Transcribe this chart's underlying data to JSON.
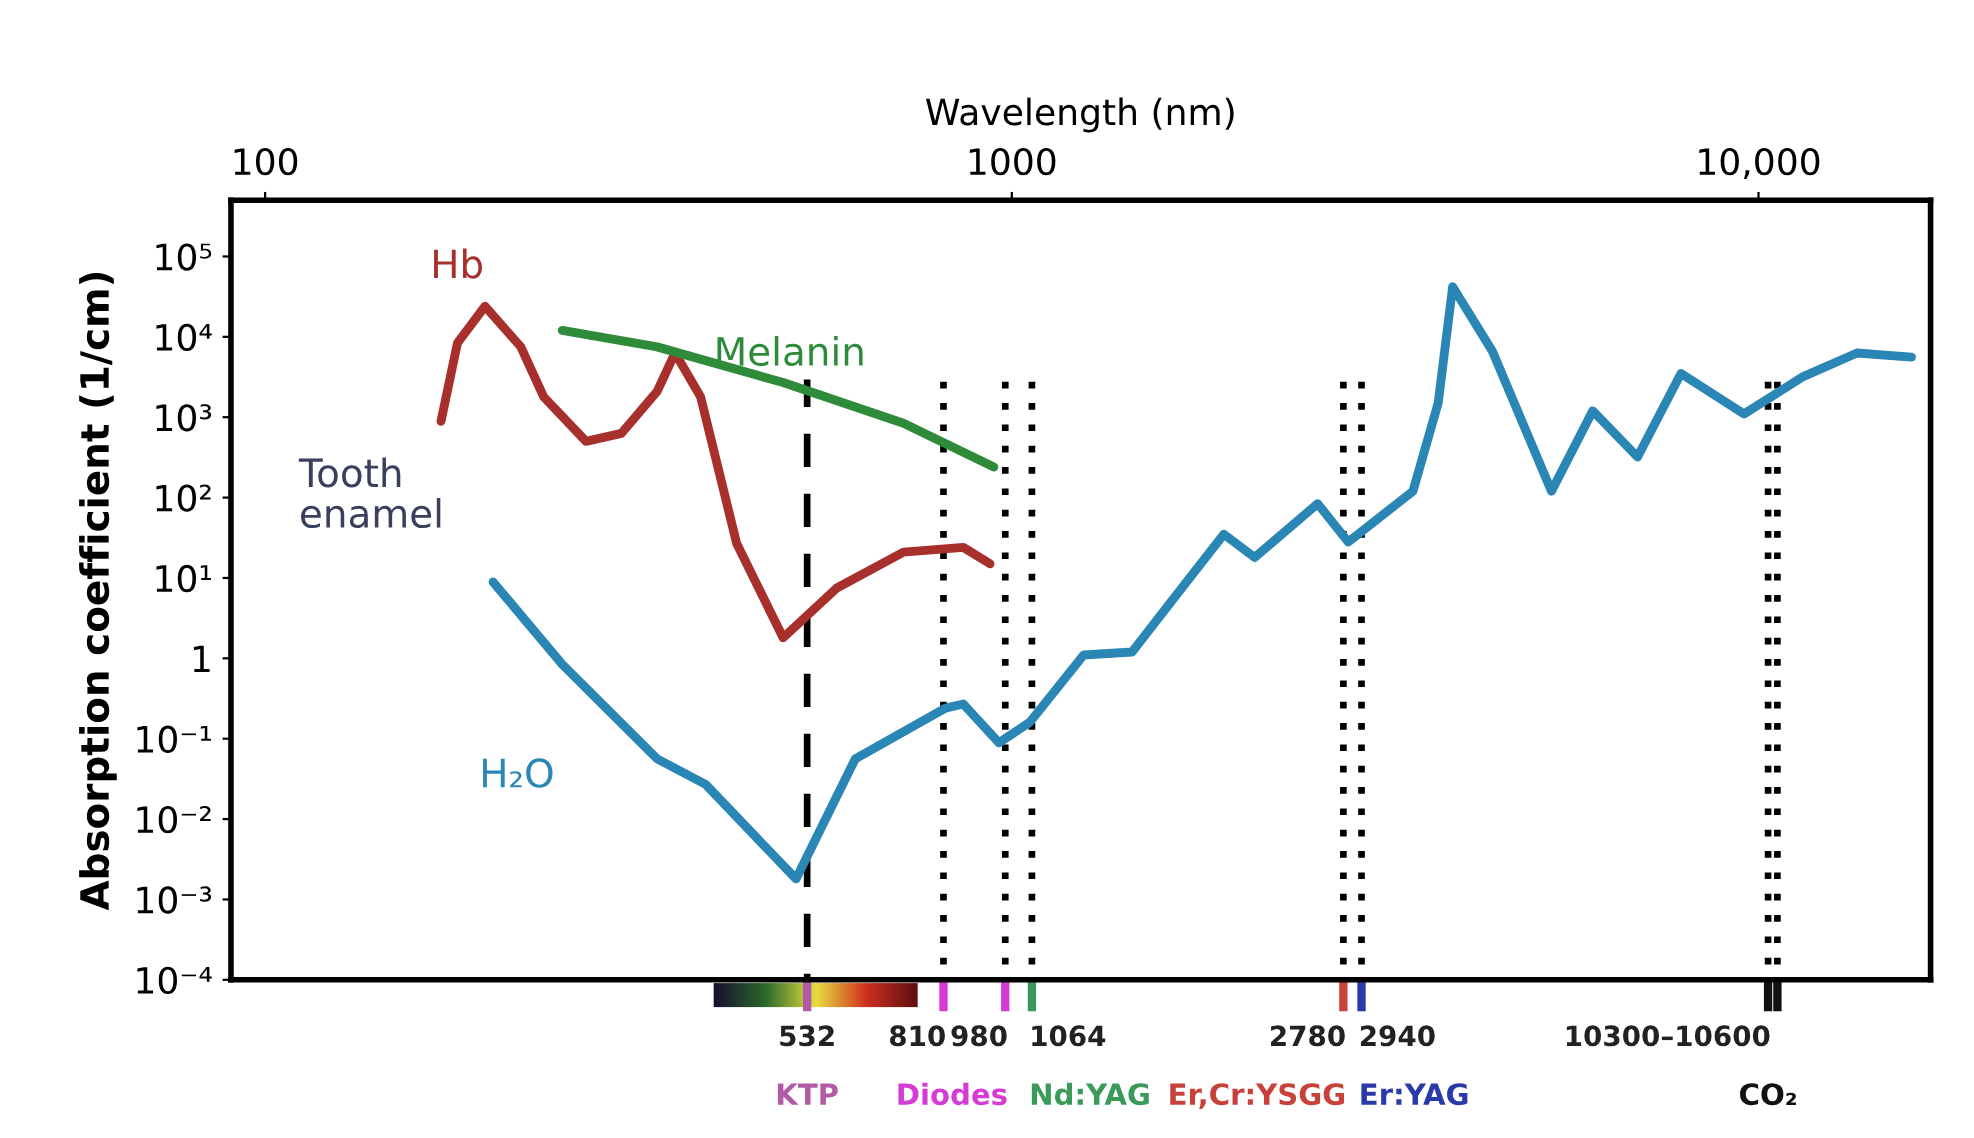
{
  "chart_data": {
    "type": "line",
    "xlabel": "Wavelength (nm)",
    "ylabel": "Absorption coefficient (1/cm)",
    "log": "xy",
    "xlim": [
      90,
      17000
    ],
    "ylim": [
      0.0001,
      500000
    ],
    "xticks": [
      100,
      1000,
      {
        "value": 10000,
        "label": "10,000"
      }
    ],
    "yticks": [
      {
        "value": 0.0001,
        "label": "10⁻⁴"
      },
      {
        "value": 0.001,
        "label": "10⁻³"
      },
      {
        "value": 0.01,
        "label": "10⁻²"
      },
      {
        "value": 0.1,
        "label": "10⁻¹"
      },
      1,
      {
        "value": 10,
        "label": "10¹"
      },
      {
        "value": 100,
        "label": "10²"
      },
      {
        "value": 1000,
        "label": "10³"
      },
      {
        "value": 10000,
        "label": "10⁴"
      },
      {
        "value": 100000,
        "label": "10⁵"
      }
    ],
    "series": [
      {
        "name": "Hb",
        "color": "#a8302c",
        "x": [
          172,
          181,
          197,
          220,
          236,
          269,
          300,
          335,
          354,
          383,
          428,
          494,
          583,
          716,
          861,
          935
        ],
        "values": [
          890,
          8400,
          24000,
          7500,
          1800,
          500,
          630,
          2100,
          6300,
          1800,
          27,
          1.8,
          7.5,
          21,
          24,
          15
        ]
      },
      {
        "name": "Melanin",
        "color": "#2e8b3a",
        "x": [
          250,
          335,
          494,
          716,
          946
        ],
        "values": [
          12000,
          7500,
          2700,
          840,
          240
        ]
      },
      {
        "name": "H₂O",
        "color": "#2a86b4",
        "x": [
          202,
          250,
          335,
          389,
          514,
          617,
          815,
          861,
          961,
          1057,
          1248,
          1449,
          1648,
          1923,
          2115,
          2568,
          2822,
          3445,
          3724,
          3894,
          4399,
          5281,
          5998,
          6887,
          7873,
          9566,
          11480,
          13550,
          16030
        ],
        "values": [
          8.9,
          0.84,
          0.056,
          0.027,
          0.0018,
          0.056,
          0.24,
          0.27,
          0.089,
          0.16,
          1.1,
          1.2,
          5.6,
          35,
          18,
          84,
          28,
          120,
          1500,
          42000,
          6700,
          120,
          1200,
          320,
          3500,
          1100,
          3200,
          6300,
          5600
        ]
      }
    ],
    "ref_lines": [
      {
        "axis": "x",
        "value": 532,
        "label": "532",
        "line_style": "dashed"
      },
      {
        "axis": "x",
        "value": 810,
        "label": "810",
        "line_style": "dotted"
      },
      {
        "axis": "x",
        "value": 980,
        "label": "980",
        "line_style": "dotted"
      },
      {
        "axis": "x",
        "value": 1064,
        "label": "1064",
        "line_style": "dotted"
      },
      {
        "axis": "x",
        "value": 2780,
        "label": "2780",
        "line_style": "dotted"
      },
      {
        "axis": "x",
        "value": 2940,
        "label": "2940",
        "line_style": "dotted"
      },
      {
        "axis": "x",
        "value": 10300,
        "label": "10300–10600",
        "line_style": "dotted"
      },
      {
        "axis": "x",
        "value": 10600,
        "label": null,
        "line_style": "dotted"
      }
    ],
    "annotations": [
      "Tooth\nenamel",
      "KTP",
      "Diodes",
      "Nd:YAG",
      "Er,Cr:YSGG",
      "Er:YAG",
      "CO₂"
    ]
  }
}
